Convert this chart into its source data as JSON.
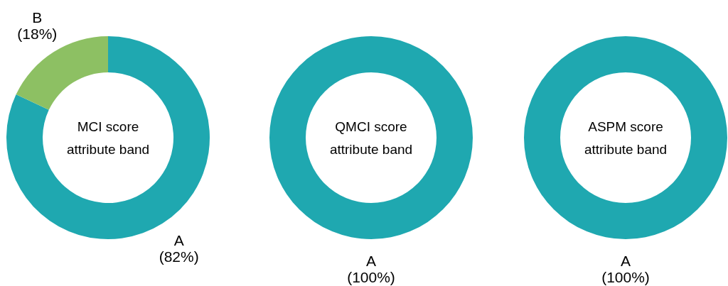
{
  "chart_data": [
    {
      "type": "donut",
      "title": "MCI score attribute band",
      "categories": [
        "A",
        "B"
      ],
      "values": [
        82,
        18
      ],
      "colors": [
        "#1fa8b0",
        "#8dc063"
      ],
      "value_labels": [
        "(82%)",
        "(18%)"
      ]
    },
    {
      "type": "donut",
      "title": "QMCI score attribute band",
      "categories": [
        "A"
      ],
      "values": [
        100
      ],
      "colors": [
        "#1fa8b0"
      ],
      "value_labels": [
        "(100%)"
      ]
    },
    {
      "type": "donut",
      "title": "ASPM score attribute band",
      "categories": [
        "A"
      ],
      "values": [
        100
      ],
      "colors": [
        "#1fa8b0"
      ],
      "value_labels": [
        "(100%)"
      ]
    }
  ]
}
